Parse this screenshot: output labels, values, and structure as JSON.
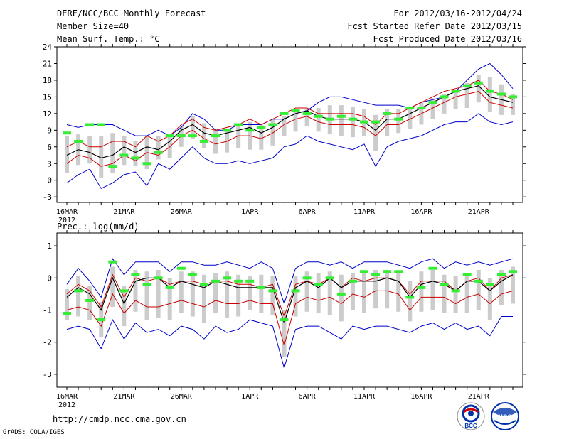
{
  "header": {
    "title": "DERF/NCC/BCC Monthly Forecast",
    "member_size": "Member Size=40",
    "variable": "Mean Surf. Temp.: °C",
    "forecast_period": "For 2012/03/16-2012/04/24",
    "started_date": "Fcst Started Refer Date 2012/03/15",
    "produced_date": "Fcst Produced Date 2012/03/16"
  },
  "footer": {
    "url": "http://cmdp.ncc.cma.gov.cn",
    "credit": "GrADS: COLA/IGES",
    "logo1_text": "BCC",
    "logo2_text": "NCC"
  },
  "colors": {
    "max_min": "#0000cc",
    "mean": "#000000",
    "anomaly": "#cc0000",
    "obs": "#33ee33",
    "spread": "#cccccc"
  },
  "chart_data": [
    {
      "type": "line",
      "title": "Mean Surf. Temp.: °C",
      "x": [
        1,
        2,
        3,
        4,
        5,
        6,
        7,
        8,
        9,
        10,
        11,
        12,
        13,
        14,
        15,
        16,
        17,
        18,
        19,
        20,
        21,
        22,
        23,
        24,
        25,
        26,
        27,
        28,
        29,
        30,
        31,
        32,
        33,
        34,
        35,
        36,
        37,
        38,
        39,
        40
      ],
      "x_tick_labels": [
        "16MAR",
        "21MAR",
        "26MAR",
        "1APR",
        "6APR",
        "11APR",
        "16APR",
        "21APR"
      ],
      "x_tick_positions": [
        1,
        6,
        11,
        17,
        22,
        27,
        32,
        37
      ],
      "x_year_label": "2012",
      "ylim": [
        -4,
        24
      ],
      "yticks": [
        -3,
        0,
        3,
        6,
        9,
        12,
        15,
        18,
        21,
        24
      ],
      "series": [
        {
          "name": "max",
          "values": [
            10,
            9.5,
            10,
            10,
            10,
            9,
            8,
            8,
            9,
            8,
            9.5,
            12,
            11,
            9,
            9,
            10,
            10,
            10,
            11,
            11,
            12,
            12.5,
            14,
            15,
            15,
            14.5,
            14,
            13.5,
            13.5,
            13.5,
            13,
            14,
            14.5,
            15,
            16,
            18,
            20,
            21,
            19,
            16.5
          ]
        },
        {
          "name": "min",
          "values": [
            -0.5,
            1,
            2,
            -1.5,
            -0.5,
            1,
            1.5,
            -1,
            3,
            2,
            4,
            6,
            4,
            3,
            3,
            3.5,
            3,
            3.5,
            4,
            6,
            6.5,
            8,
            7,
            6.5,
            6,
            5.5,
            6.5,
            2.5,
            6,
            7,
            7.5,
            8,
            9,
            10,
            10.5,
            10.5,
            12,
            10.5,
            10,
            10.5
          ]
        },
        {
          "name": "mean_upper",
          "values": [
            6,
            7,
            6,
            6,
            7,
            7,
            6,
            8,
            7,
            8,
            10,
            11,
            9.5,
            9,
            9.5,
            10,
            11,
            10,
            11,
            12,
            13,
            13,
            12,
            12,
            12,
            12,
            11.5,
            10,
            12,
            12,
            13,
            14,
            15,
            16,
            16.5,
            17,
            18,
            16,
            15.5,
            14.5
          ]
        },
        {
          "name": "mean",
          "values": [
            4.5,
            5.5,
            5,
            4,
            4.5,
            6,
            5,
            6,
            5.5,
            7,
            9,
            10,
            8.5,
            8,
            8.5,
            9,
            9.5,
            8.5,
            9.5,
            11,
            12,
            12.5,
            11.5,
            11,
            11,
            11,
            10.5,
            9,
            11,
            11,
            12,
            13,
            14,
            15,
            16,
            16.5,
            17,
            15,
            14.5,
            14
          ]
        },
        {
          "name": "mean_lower",
          "values": [
            3,
            4.5,
            4,
            2.5,
            3,
            4.5,
            3.5,
            5,
            4.5,
            6,
            8,
            9,
            7.5,
            6.5,
            7,
            8,
            8,
            7.5,
            8.5,
            10,
            11,
            11.5,
            10.5,
            10,
            10,
            10,
            9.5,
            8,
            10,
            10,
            11,
            12,
            13,
            14,
            15,
            15.5,
            16,
            14,
            13.5,
            13
          ]
        },
        {
          "name": "observed",
          "values": [
            8.5,
            7,
            10,
            10,
            2.5,
            4.5,
            4,
            3,
            5,
            8,
            8,
            8,
            7,
            8,
            9,
            10,
            9,
            9.5,
            10,
            12,
            12.5,
            12,
            11.5,
            11,
            11.5,
            11,
            10.5,
            10.5,
            12,
            11,
            13,
            13,
            14,
            15,
            16,
            17,
            17.5,
            16,
            15.5,
            15
          ]
        }
      ]
    },
    {
      "type": "line",
      "title": "Prec.: log(mm/d)",
      "x": [
        1,
        2,
        3,
        4,
        5,
        6,
        7,
        8,
        9,
        10,
        11,
        12,
        13,
        14,
        15,
        16,
        17,
        18,
        19,
        20,
        21,
        22,
        23,
        24,
        25,
        26,
        27,
        28,
        29,
        30,
        31,
        32,
        33,
        34,
        35,
        36,
        37,
        38,
        39,
        40
      ],
      "x_tick_labels": [
        "16MAR",
        "21MAR",
        "26MAR",
        "1APR",
        "6APR",
        "11APR",
        "16APR",
        "21APR"
      ],
      "x_tick_positions": [
        1,
        6,
        11,
        17,
        22,
        27,
        32,
        37
      ],
      "x_year_label": "2012",
      "ylim": [
        -3.4,
        1.4
      ],
      "yticks": [
        -3,
        -2,
        -1,
        0,
        1
      ],
      "series": [
        {
          "name": "max",
          "values": [
            -0.2,
            0.3,
            -0.1,
            -0.6,
            0.6,
            0.1,
            0.5,
            0.5,
            0.5,
            0.2,
            0.5,
            0.5,
            0.4,
            0.4,
            0.5,
            0.4,
            0.3,
            0.5,
            0.3,
            -0.8,
            0.3,
            0.5,
            0.5,
            0.4,
            0.5,
            0.3,
            0.5,
            0.5,
            0.5,
            0.4,
            0.3,
            0.5,
            0.6,
            0.3,
            0.5,
            0.4,
            0.5,
            0.4,
            0.5,
            0.6
          ]
        },
        {
          "name": "min",
          "values": [
            -1.6,
            -1.5,
            -1.6,
            -2.2,
            -1.3,
            -1.9,
            -1.4,
            -1.7,
            -1.6,
            -1.8,
            -1.5,
            -1.6,
            -1.9,
            -1.5,
            -1.7,
            -1.6,
            -1.3,
            -1.4,
            -1.5,
            -2.8,
            -1.6,
            -1.5,
            -1.5,
            -1.7,
            -1.9,
            -1.5,
            -1.6,
            -1.5,
            -1.5,
            -1.6,
            -1.7,
            -1.5,
            -1.4,
            -1.6,
            -1.4,
            -1.6,
            -1.5,
            -1.8,
            -1.2,
            -1.2
          ]
        },
        {
          "name": "mean_upper",
          "values": [
            -0.5,
            -0.2,
            -0.4,
            -0.9,
            0.1,
            -0.6,
            0,
            -0.1,
            0,
            -0.2,
            -0.1,
            -0.1,
            -0.2,
            -0.1,
            -0.1,
            -0.2,
            -0.2,
            -0.3,
            -0.2,
            -1.2,
            -0.2,
            -0.1,
            -0.2,
            0,
            -0.3,
            0,
            -0.1,
            0,
            0,
            -0.1,
            -0.5,
            -0.1,
            -0.1,
            -0.1,
            -0.4,
            -0.1,
            0,
            -0.4,
            0,
            0.1
          ]
        },
        {
          "name": "mean",
          "values": [
            -0.6,
            -0.3,
            -0.5,
            -1,
            0,
            -0.8,
            -0.1,
            0,
            0,
            -0.3,
            -0.1,
            -0.2,
            -0.3,
            -0.1,
            -0.2,
            -0.3,
            -0.3,
            -0.3,
            -0.3,
            -1.4,
            -0.3,
            -0.1,
            -0.3,
            0,
            -0.3,
            -0.1,
            -0.1,
            -0.1,
            0,
            -0.1,
            -0.6,
            -0.2,
            -0.1,
            -0.2,
            -0.4,
            -0.1,
            -0.1,
            -0.4,
            -0.1,
            0.1
          ]
        },
        {
          "name": "mean_lower",
          "values": [
            -1,
            -0.9,
            -1,
            -1.5,
            -0.5,
            -1.1,
            -0.7,
            -0.9,
            -0.9,
            -0.8,
            -0.7,
            -0.8,
            -0.9,
            -0.7,
            -0.8,
            -0.8,
            -0.7,
            -0.8,
            -0.8,
            -2.1,
            -0.8,
            -0.6,
            -0.7,
            -0.6,
            -0.8,
            -0.5,
            -0.6,
            -0.4,
            -0.4,
            -0.5,
            -1,
            -0.6,
            -0.6,
            -0.6,
            -0.8,
            -0.6,
            -0.5,
            -0.8,
            -0.5,
            -0.4
          ]
        },
        {
          "name": "observed",
          "values": [
            -1.1,
            -0.4,
            -0.7,
            -1.3,
            0.5,
            -0.4,
            0.1,
            -0.2,
            0,
            -0.3,
            0.3,
            0.1,
            -0.2,
            -0.1,
            0,
            -0.1,
            -0.1,
            -0.3,
            -0.4,
            -1.3,
            -0.4,
            0,
            -0.2,
            0,
            -0.5,
            -0.1,
            0.2,
            0.1,
            0.2,
            0.2,
            -0.6,
            -0.3,
            0.3,
            -0.2,
            -0.4,
            0.1,
            -0.1,
            -0.2,
            0.1,
            0.2
          ]
        }
      ]
    }
  ]
}
